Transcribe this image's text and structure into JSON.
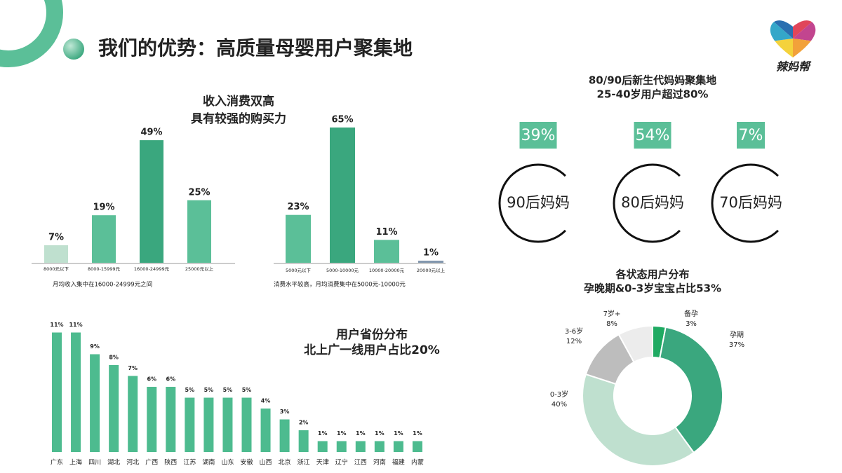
{
  "title": "我们的优势：高质量母婴用户聚集地",
  "logo": "辣妈帮",
  "chart_data": [
    {
      "type": "bar",
      "title": [
        "收入消费双高",
        "具有较强的购买力"
      ],
      "categories": [
        "8000元以下",
        "8000-15999元",
        "16000-24999元",
        "25000元以上"
      ],
      "values": [
        7,
        19,
        49,
        25
      ],
      "value_labels": [
        "7%",
        "19%",
        "49%",
        "25%"
      ],
      "colors": [
        "#bfe0cf",
        "#5bbf98",
        "#3aa77e",
        "#5bbf98"
      ],
      "note": "月均收入集中在16000-24999元之间"
    },
    {
      "type": "bar",
      "categories": [
        "5000元以下",
        "5000-10000元",
        "10000-20000元",
        "20000元以上"
      ],
      "values": [
        23,
        65,
        11,
        1
      ],
      "value_labels": [
        "23%",
        "65%",
        "11%",
        "1%"
      ],
      "colors": [
        "#5bbf98",
        "#3aa77e",
        "#5bbf98",
        "#8196ad"
      ],
      "note": "消费水平较高，月均消费集中在5000元-10000元"
    },
    {
      "type": "bar",
      "title": [
        "用户省份分布",
        "北上广一线用户占比20%"
      ],
      "categories": [
        "广东",
        "上海",
        "四川",
        "湖北",
        "河北",
        "广西",
        "陕西",
        "江苏",
        "湖南",
        "山东",
        "安徽",
        "山西",
        "北京",
        "浙江",
        "天津",
        "辽宁",
        "江西",
        "河南",
        "福建",
        "内蒙"
      ],
      "values": [
        11,
        11,
        9,
        8,
        7,
        6,
        6,
        5,
        5,
        5,
        5,
        4,
        3,
        2,
        1,
        1,
        1,
        1,
        1,
        1
      ],
      "value_labels": [
        "11%",
        "11%",
        "9%",
        "8%",
        "7%",
        "6%",
        "6%",
        "5%",
        "5%",
        "5%",
        "5%",
        "4%",
        "3%",
        "2%",
        "1%",
        "1%",
        "1%",
        "1%",
        "1%",
        "1%"
      ],
      "color": "#4dbb8f"
    },
    {
      "type": "stat",
      "title": [
        "80/90后新生代妈妈聚集地",
        "25-40岁用户超过80%"
      ],
      "categories": [
        "90后妈妈",
        "80后妈妈",
        "70后妈妈"
      ],
      "values": [
        39,
        54,
        7
      ],
      "value_labels": [
        "39%",
        "54%",
        "7%"
      ],
      "color": "#5bbf98"
    },
    {
      "type": "donut",
      "title": [
        "各状态用户分布",
        "孕晚期&0-3岁宝宝占比53%"
      ],
      "categories": [
        "备孕",
        "孕期",
        "0-3岁",
        "3-6岁",
        "7岁+"
      ],
      "values": [
        3,
        37,
        40,
        12,
        8
      ],
      "value_labels": [
        "3%",
        "37%",
        "40%",
        "12%",
        "8%"
      ],
      "colors": [
        "#1faa62",
        "#3aa77e",
        "#bfe0cf",
        "#bdbdbd",
        "#ececec"
      ]
    }
  ]
}
